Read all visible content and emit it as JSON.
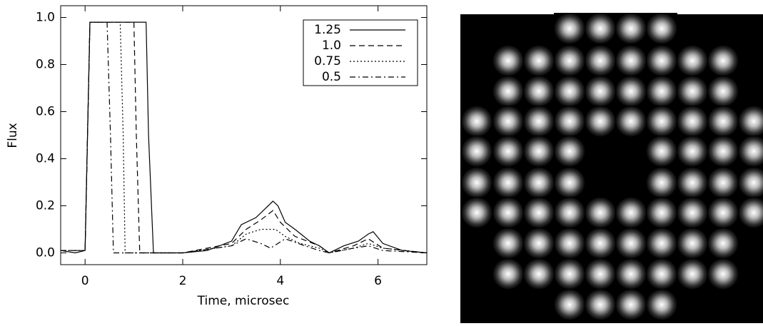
{
  "chart_data": {
    "type": "line",
    "x_label": "Time, microsec",
    "y_label": "Flux",
    "xlim": [
      -0.5,
      7
    ],
    "ylim": [
      -0.05,
      1.05
    ],
    "xticks": [
      0,
      2,
      4,
      6
    ],
    "yticks": [
      {
        "value": 0,
        "label": "0.0"
      },
      {
        "value": 0.2,
        "label": "0.2"
      },
      {
        "value": 0.4,
        "label": "0.4"
      },
      {
        "value": 0.6,
        "label": "0.6"
      },
      {
        "value": 0.8,
        "label": "0.8"
      },
      {
        "value": 1,
        "label": "1.0"
      }
    ],
    "legend": "top-right",
    "series": [
      {
        "name": "1.25",
        "color": "#000000",
        "dash": "solid",
        "x": [
          -0.5,
          -0.2,
          0,
          0.05,
          0.1,
          0.15,
          0.5,
          1.0,
          1.2,
          1.25,
          1.3,
          1.4,
          2,
          2.5,
          3,
          3.2,
          3.5,
          3.7,
          3.85,
          3.95,
          4.1,
          4.3,
          4.6,
          4.8,
          5.0,
          5.3,
          5.6,
          5.8,
          5.9,
          6.1,
          6.5,
          7
        ],
        "values": [
          0.01,
          0.0,
          0.01,
          0.5,
          0.98,
          0.98,
          0.98,
          0.98,
          0.98,
          0.98,
          0.5,
          0.0,
          0.0,
          0.01,
          0.05,
          0.12,
          0.15,
          0.19,
          0.22,
          0.2,
          0.13,
          0.1,
          0.05,
          0.03,
          0.0,
          0.03,
          0.05,
          0.08,
          0.09,
          0.04,
          0.01,
          0.0
        ]
      },
      {
        "name": "1.0",
        "color": "#000000",
        "dash": "dashed",
        "x": [
          -0.5,
          0,
          0.1,
          1.0,
          1.05,
          1.12,
          2,
          3,
          3.3,
          3.6,
          3.85,
          4.0,
          4.3,
          4.8,
          5.0,
          5.5,
          5.8,
          6.1,
          7
        ],
        "values": [
          0.01,
          0.01,
          0.98,
          0.98,
          0.5,
          0.0,
          0.0,
          0.04,
          0.1,
          0.14,
          0.18,
          0.13,
          0.07,
          0.03,
          0.0,
          0.03,
          0.06,
          0.02,
          0.0
        ]
      },
      {
        "name": "0.75",
        "color": "#000000",
        "dash": "dotted",
        "x": [
          -0.5,
          0,
          0.1,
          0.72,
          0.78,
          0.82,
          2,
          3,
          3.3,
          3.6,
          3.9,
          4.1,
          4.4,
          4.8,
          5.0,
          5.5,
          5.8,
          6.1,
          7
        ],
        "values": [
          0.01,
          0.01,
          0.98,
          0.98,
          0.5,
          0.0,
          0.0,
          0.03,
          0.08,
          0.1,
          0.1,
          0.07,
          0.04,
          0.02,
          0.0,
          0.02,
          0.04,
          0.02,
          0.0
        ]
      },
      {
        "name": "0.5",
        "color": "#000000",
        "dash": "dashdot",
        "x": [
          -0.5,
          0,
          0.1,
          0.45,
          0.52,
          0.58,
          2,
          3,
          3.3,
          3.6,
          3.8,
          4.1,
          4.5,
          4.8,
          5.0,
          5.5,
          5.8,
          6.1,
          7
        ],
        "values": [
          0.01,
          0.01,
          0.98,
          0.98,
          0.5,
          0.0,
          0.0,
          0.03,
          0.06,
          0.04,
          0.02,
          0.06,
          0.03,
          0.01,
          0.0,
          0.02,
          0.03,
          0.01,
          0.0
        ]
      }
    ]
  }
}
